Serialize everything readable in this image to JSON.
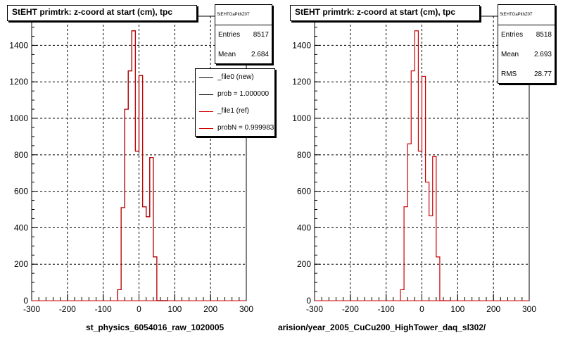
{
  "chart_data": [
    {
      "type": "histogram",
      "title": "StEHT primtrk: z-coord at start (cm), tpc",
      "xlabel": "st_physics_6054016_raw_1020005",
      "xlim": [
        -300,
        300
      ],
      "ylim": [
        0,
        1560
      ],
      "x_ticks": [
        "-300",
        "-200",
        "-100",
        "0",
        "100",
        "200",
        "300"
      ],
      "y_ticks": [
        "0",
        "200",
        "400",
        "600",
        "800",
        "1000",
        "1200",
        "1400"
      ],
      "grid": true,
      "bin_edges": [
        -60,
        -50,
        -40,
        -30,
        -20,
        -10,
        0,
        10,
        20,
        30,
        40,
        50,
        60,
        70,
        80
      ],
      "series": [
        {
          "name": "_file0 (new)",
          "color": "#000000",
          "values": [
            60,
            510,
            1050,
            1260,
            1480,
            820,
            1235,
            515,
            460,
            785,
            240,
            0,
            0,
            0
          ]
        },
        {
          "name": "_file1 (ref)",
          "color": "#cc0000",
          "values": [
            60,
            510,
            1050,
            1260,
            1480,
            820,
            1235,
            515,
            460,
            785,
            240,
            0,
            0,
            0
          ]
        }
      ],
      "stats": {
        "header": "StEHTGaPithZ0T",
        "entries_label": "Entries",
        "entries": "8517",
        "mean_label": "Mean",
        "mean": "2.684"
      },
      "legend": [
        "_file0 (new)",
        "prob = 1.000000",
        "_file1 (ref)",
        "probN = 0.999983"
      ]
    },
    {
      "type": "histogram",
      "title": "StEHT primtrk: z-coord at start (cm), tpc",
      "xlabel": "arision/year_2005_CuCu200_HighTower_daq_sl302/",
      "xlim": [
        -300,
        300
      ],
      "ylim": [
        0,
        1560
      ],
      "x_ticks": [
        "-300",
        "-200",
        "-100",
        "0",
        "100",
        "200",
        "300"
      ],
      "y_ticks": [
        "0",
        "200",
        "400",
        "600",
        "800",
        "1000",
        "1200",
        "1400"
      ],
      "grid": true,
      "bin_edges": [
        -60,
        -50,
        -40,
        -30,
        -20,
        -10,
        0,
        10,
        20,
        30,
        40,
        50,
        60,
        70,
        80
      ],
      "series": [
        {
          "name": "_file1 (ref)",
          "color": "#cc0000",
          "values": [
            60,
            515,
            860,
            1260,
            1480,
            820,
            1230,
            650,
            465,
            790,
            240,
            0,
            0,
            0
          ]
        }
      ],
      "stats": {
        "header": "StEHTGaPithZ0T",
        "entries_label": "Entries",
        "entries": "8518",
        "mean_label": "Mean",
        "mean": "2.693",
        "rms_label": "RMS",
        "rms": "28.77"
      }
    }
  ]
}
